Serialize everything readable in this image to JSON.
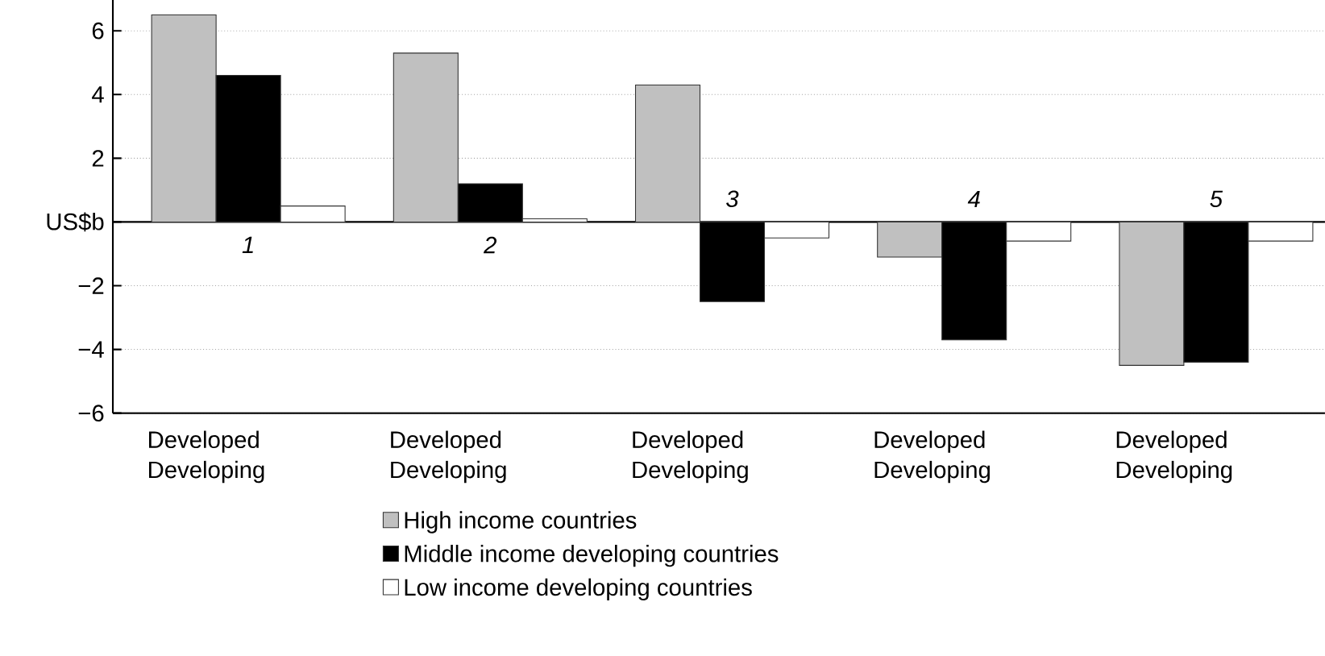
{
  "chart_data": {
    "type": "bar",
    "categories": [
      "1",
      "2",
      "3",
      "4",
      "5"
    ],
    "series": [
      {
        "name": "High income countries",
        "color": "#c0c0c0",
        "values": [
          6.5,
          5.3,
          4.3,
          -1.1,
          -4.5
        ]
      },
      {
        "name": "Middle income developing countries",
        "color": "#000000",
        "values": [
          4.6,
          1.2,
          -2.5,
          -3.7,
          -4.4
        ]
      },
      {
        "name": "Low income developing countries",
        "color": "#ffffff",
        "values": [
          0.5,
          0.1,
          -0.5,
          -0.6,
          -0.6
        ]
      }
    ],
    "ylim": [
      -6,
      7
    ],
    "yticks": [
      {
        "value": -6,
        "label": "−6"
      },
      {
        "value": -4,
        "label": "−4"
      },
      {
        "value": -2,
        "label": "−2"
      },
      {
        "value": 0,
        "label": "US$b"
      },
      2,
      4,
      6
    ],
    "grid": "y",
    "legend": "bottom",
    "annotations": [
      "Developed",
      "Developing",
      "Developed",
      "Developing",
      "Developed",
      "Developing",
      "Developed",
      "Developing",
      "Developed",
      "Developing"
    ]
  }
}
